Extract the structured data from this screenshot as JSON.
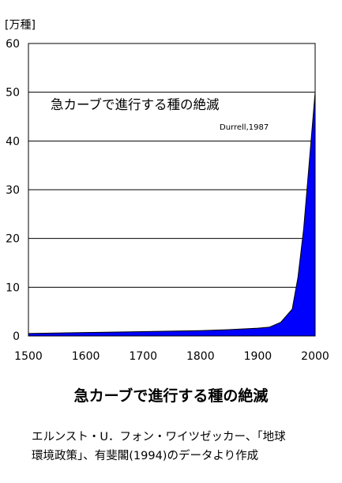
{
  "chart_data": {
    "type": "area",
    "unit_label": "[万種]",
    "inner_title": "急カーブで進行する種の絶滅",
    "inner_source": "Durrell,1987",
    "xlim": [
      1500,
      2000
    ],
    "ylim": [
      0,
      60
    ],
    "x_ticks": [
      1500,
      1600,
      1700,
      1800,
      1900,
      2000
    ],
    "y_ticks": [
      0,
      10,
      20,
      30,
      40,
      50,
      60
    ],
    "grid": "horizontal",
    "fill_color": "#0000ff",
    "series": [
      {
        "x": [
          1500,
          1600,
          1700,
          1800,
          1850,
          1900,
          1920,
          1940,
          1960,
          1970,
          1980,
          1990,
          2000
        ],
        "values": [
          0.5,
          0.7,
          0.9,
          1.1,
          1.3,
          1.6,
          1.8,
          2.8,
          5.5,
          12,
          22,
          36,
          50
        ]
      }
    ]
  },
  "caption": {
    "title": "急カーブで進行する種の絶滅",
    "source_line1": "エルンスト・U．フォン・ワイツゼッカー、「地球",
    "source_line2": "環境政策」、有斐閣(1994)のデータより作成"
  }
}
